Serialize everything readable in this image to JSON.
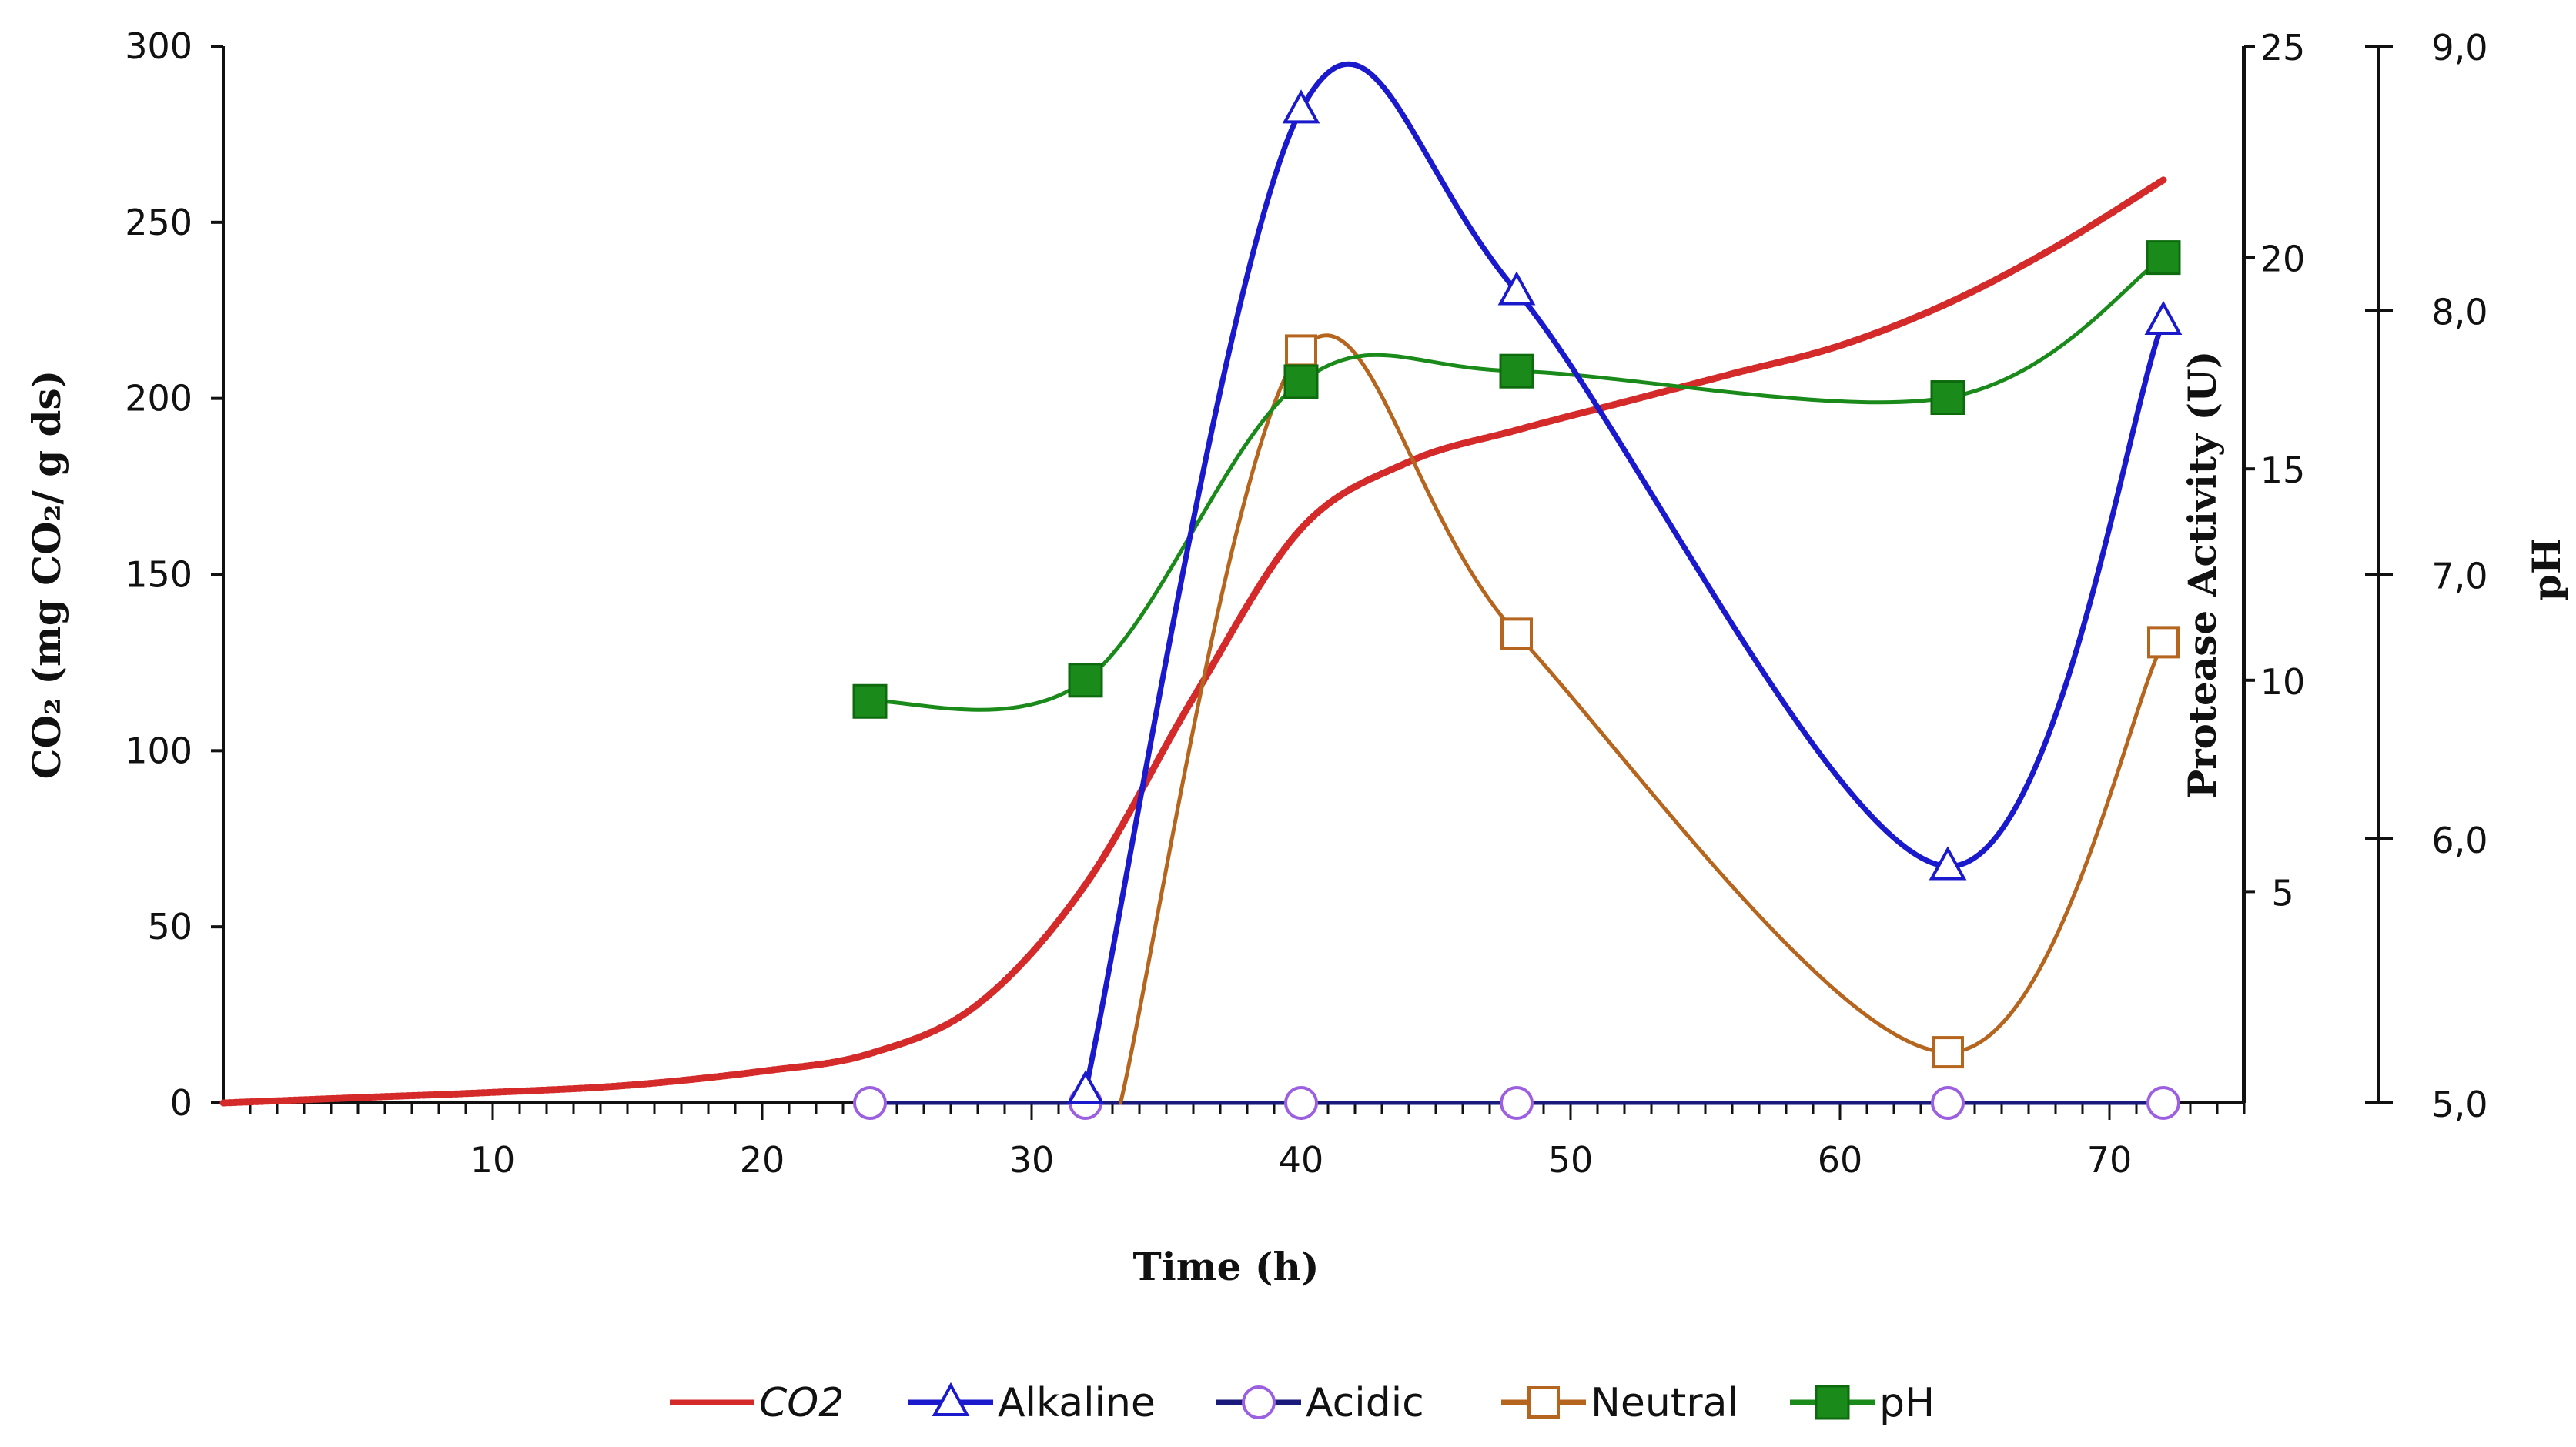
{
  "chart_data": {
    "type": "line",
    "x": [
      24,
      32,
      40,
      48,
      64,
      72
    ],
    "xlabel": "Time (h)",
    "xlim": [
      0,
      75
    ],
    "xticks": [
      10,
      20,
      30,
      40,
      50,
      60,
      70
    ],
    "y_left": {
      "label": "CO₂ (mg CO₂/ g ds)",
      "lim": [
        0,
        300
      ],
      "ticks": [
        0,
        50,
        100,
        150,
        200,
        250,
        300
      ]
    },
    "y_right1": {
      "label": "Protease Activity (U)",
      "lim": [
        0,
        25
      ],
      "ticks": [
        5,
        10,
        15,
        20,
        25
      ]
    },
    "y_right2": {
      "label": "pH",
      "lim": [
        5.0,
        9.0
      ],
      "ticks": [
        "5,0",
        "6,0",
        "7,0",
        "8,0",
        "9,0"
      ],
      "tick_values": [
        5,
        6,
        7,
        8,
        9
      ]
    },
    "series": [
      {
        "name": "CO2",
        "axis": "left",
        "color": "#d42a2a",
        "marker": "none",
        "curve_x": [
          0,
          5,
          10,
          15,
          20,
          24,
          28,
          32,
          36,
          40,
          44,
          48,
          52,
          56,
          60,
          64,
          68,
          72
        ],
        "curve_y": [
          0,
          1.5,
          3,
          5,
          9,
          14,
          28,
          62,
          115,
          163,
          182,
          191,
          199,
          207,
          215,
          227,
          243,
          262
        ]
      },
      {
        "name": "Alkaline",
        "axis": "right1",
        "color": "#1a1acc",
        "marker": "triangle",
        "x": [
          32,
          40,
          48,
          64,
          72
        ],
        "values": [
          0.3,
          23.5,
          19.2,
          5.6,
          18.5
        ]
      },
      {
        "name": "Acidic",
        "axis": "right1",
        "color": "#9b5fe0",
        "line_color": "#1a1a7a",
        "marker": "circle",
        "x": [
          24,
          32,
          40,
          48,
          64,
          72
        ],
        "values": [
          0,
          0,
          0,
          0,
          0,
          0
        ]
      },
      {
        "name": "Neutral",
        "axis": "right1",
        "color": "#b5651d",
        "marker": "square-open",
        "x": [
          33.3,
          40,
          48,
          64,
          72
        ],
        "values": [
          0,
          17.8,
          11.1,
          1.2,
          10.9
        ]
      },
      {
        "name": "pH",
        "axis": "right2",
        "color": "#1a8a1a",
        "marker": "square-filled",
        "x": [
          24,
          32,
          40,
          48,
          64,
          72
        ],
        "values": [
          6.52,
          6.6,
          7.73,
          7.77,
          7.67,
          8.2
        ]
      }
    ],
    "legend": {
      "position": "bottom",
      "entries": [
        "CO2",
        "Alkaline",
        "Acidic",
        "Neutral",
        "pH"
      ]
    },
    "grid": false
  }
}
